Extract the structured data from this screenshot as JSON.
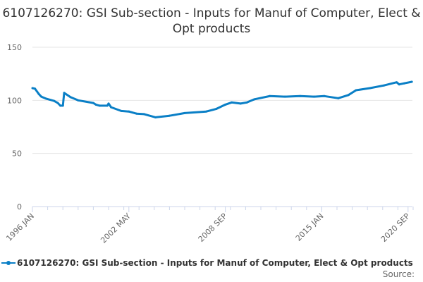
{
  "chart_data": {
    "type": "line",
    "title": "6107126270: GSI Sub-section - Inputs for Manuf of Computer, Elect & Opt products",
    "xlabel": "",
    "ylabel": "",
    "ylim": [
      0,
      150
    ],
    "yticks": [
      "0",
      "50",
      "100",
      "150"
    ],
    "xticks": [
      {
        "label": "1996 JAN",
        "date": "1996-01"
      },
      {
        "label": "2002 MAY",
        "date": "2002-05"
      },
      {
        "label": "2008 SEP",
        "date": "2008-09"
      },
      {
        "label": "2015 JAN",
        "date": "2015-01"
      },
      {
        "label": "2020 SEP",
        "date": "2020-09"
      }
    ],
    "grid": true,
    "legend_position": "bottom",
    "color": "#0a7fc6",
    "series": [
      {
        "name": "6107126270: GSI Sub-section - Inputs for Manuf of Computer, Elect & Opt products",
        "points": [
          [
            "1996-01",
            111.5
          ],
          [
            "1996-03",
            111
          ],
          [
            "1996-06",
            106
          ],
          [
            "1996-08",
            103.5
          ],
          [
            "1996-12",
            101.5
          ],
          [
            "1997-06",
            99.5
          ],
          [
            "1997-09",
            97.5
          ],
          [
            "1997-11",
            95
          ],
          [
            "1998-01",
            95
          ],
          [
            "1998-02",
            107
          ],
          [
            "1998-07",
            103
          ],
          [
            "1999-01",
            100
          ],
          [
            "2000-01",
            97.5
          ],
          [
            "2000-03",
            96
          ],
          [
            "2000-06",
            95
          ],
          [
            "2000-12",
            95
          ],
          [
            "2001-01",
            97
          ],
          [
            "2001-03",
            93.5
          ],
          [
            "2001-11",
            90
          ],
          [
            "2002-05",
            89.5
          ],
          [
            "2002-11",
            87.5
          ],
          [
            "2003-05",
            87
          ],
          [
            "2004-02",
            84
          ],
          [
            "2005-01",
            85.5
          ],
          [
            "2006-01",
            88
          ],
          [
            "2007-06",
            89.5
          ],
          [
            "2008-02",
            92
          ],
          [
            "2008-09",
            96
          ],
          [
            "2009-02",
            98
          ],
          [
            "2009-09",
            97
          ],
          [
            "2010-02",
            98
          ],
          [
            "2010-08",
            101
          ],
          [
            "2011-08",
            104
          ],
          [
            "2012-08",
            103.5
          ],
          [
            "2013-08",
            104
          ],
          [
            "2014-07",
            103.5
          ],
          [
            "2015-03",
            104
          ],
          [
            "2016-02",
            102
          ],
          [
            "2016-10",
            105
          ],
          [
            "2017-04",
            109.5
          ],
          [
            "2018-03",
            111.5
          ],
          [
            "2019-02",
            114
          ],
          [
            "2019-12",
            117
          ],
          [
            "2020-02",
            115
          ],
          [
            "2020-06",
            116
          ],
          [
            "2020-12",
            117.5
          ]
        ]
      }
    ]
  },
  "legend": {
    "label": "6107126270: GSI Sub-section - Inputs for Manuf of Computer, Elect & Opt products"
  },
  "source": "Source:"
}
